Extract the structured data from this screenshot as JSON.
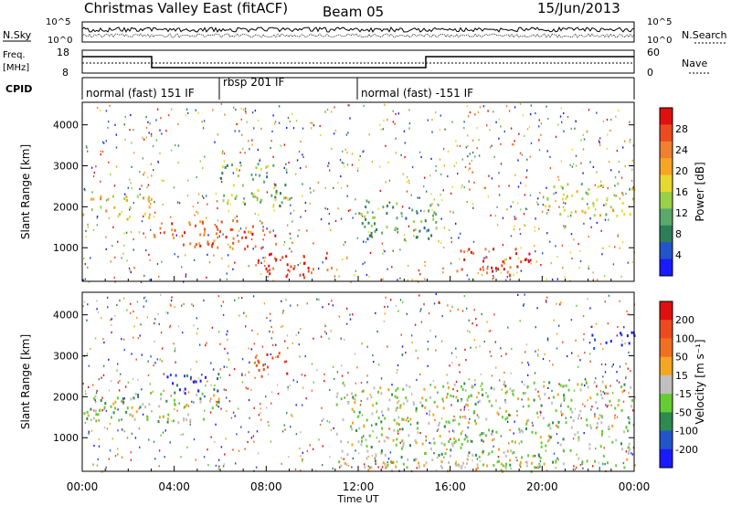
{
  "header": {
    "station": "Christmas Valley East (fitACF)",
    "beam": "Beam 05",
    "date": "15/Jun/2013"
  },
  "top_panels": {
    "noise": {
      "left_label": "N.Sky",
      "right_label": "N.Search",
      "left_ticks": [
        "10^5",
        "10^0"
      ],
      "right_ticks": [
        "10^5",
        "10^0"
      ]
    },
    "freq": {
      "left_label_line1": "Freq.",
      "left_label_line2": "[MHz]",
      "right_label": "Nave",
      "left_ticks": [
        "18",
        "8"
      ],
      "right_ticks": [
        "60",
        "0"
      ]
    },
    "cpid": {
      "label": "CPID",
      "segments": [
        {
          "start_hour": 0,
          "end_hour": 6,
          "label": "normal (fast) 151 IF"
        },
        {
          "start_hour": 6,
          "end_hour": 12,
          "label": "rbsp 201 IF"
        },
        {
          "start_hour": 12,
          "end_hour": 24,
          "label": "normal (fast) -151 IF"
        }
      ]
    }
  },
  "chart_data": [
    {
      "type": "heatmap",
      "name": "power",
      "ylabel": "Slant Range [km]",
      "yticks": [
        1000,
        2000,
        3000,
        4000
      ],
      "ylim": [
        180,
        4550
      ],
      "xlim": [
        0,
        24
      ],
      "colorbar": {
        "label": "Power [dB]",
        "ticks": [
          "28",
          "24",
          "20",
          "16",
          "12",
          "8",
          "4"
        ],
        "colors": [
          "#1a1aff",
          "#2255cc",
          "#2e7d59",
          "#5aa86a",
          "#9ad14a",
          "#e8d930",
          "#f5a623",
          "#f08030",
          "#ee4a20",
          "#e01010"
        ]
      },
      "bands": [
        {
          "t0": 0.0,
          "t1": 3.0,
          "r0": 1700,
          "r1": 2300,
          "level": 6
        },
        {
          "t0": 3.0,
          "t1": 8.5,
          "r0": 1000,
          "r1": 1700,
          "level": 8
        },
        {
          "t0": 6.0,
          "t1": 9.0,
          "r0": 2000,
          "r1": 3100,
          "level": 4
        },
        {
          "t0": 7.5,
          "t1": 11.0,
          "r0": 300,
          "r1": 900,
          "level": 9
        },
        {
          "t0": 12.0,
          "t1": 15.5,
          "r0": 1200,
          "r1": 2200,
          "level": 3
        },
        {
          "t0": 16.0,
          "t1": 19.5,
          "r0": 350,
          "r1": 1000,
          "level": 9
        },
        {
          "t0": 20.0,
          "t1": 24.0,
          "r0": 1800,
          "r1": 2600,
          "level": 5
        }
      ]
    },
    {
      "type": "heatmap",
      "name": "velocity",
      "ylabel": "Slant Range [km]",
      "xlabel": "Time UT",
      "yticks": [
        1000,
        2000,
        3000,
        4000
      ],
      "ylim": [
        180,
        4550
      ],
      "xlim": [
        0,
        24
      ],
      "xticks": [
        "00:00",
        "04:00",
        "08:00",
        "12:00",
        "16:00",
        "20:00",
        "00:00"
      ],
      "colorbar": {
        "label": "Velocity [m s⁻¹]",
        "ticks": [
          "200",
          "100",
          "50",
          "15",
          "-15",
          "-50",
          "-100",
          "-200"
        ],
        "colors": [
          "#1a1aff",
          "#2255cc",
          "#2e8a50",
          "#66cc33",
          "#c0c0c0",
          "#f5a623",
          "#f07020",
          "#ee4a20",
          "#e01010"
        ]
      },
      "bands": [
        {
          "t0": 0.0,
          "t1": 6.0,
          "r0": 1400,
          "r1": 2200,
          "level": 4
        },
        {
          "t0": 3.5,
          "t1": 6.0,
          "r0": 2100,
          "r1": 2600,
          "level": 1
        },
        {
          "t0": 7.5,
          "t1": 9.0,
          "r0": 2500,
          "r1": 3100,
          "level": 7
        },
        {
          "t0": 11.0,
          "t1": 24.0,
          "r0": 300,
          "r1": 2400,
          "level": 4
        },
        {
          "t0": 12.0,
          "t1": 20.0,
          "r0": 200,
          "r1": 450,
          "level": 5
        },
        {
          "t0": 22.0,
          "t1": 24.0,
          "r0": 3200,
          "r1": 3600,
          "level": 0
        }
      ]
    }
  ]
}
